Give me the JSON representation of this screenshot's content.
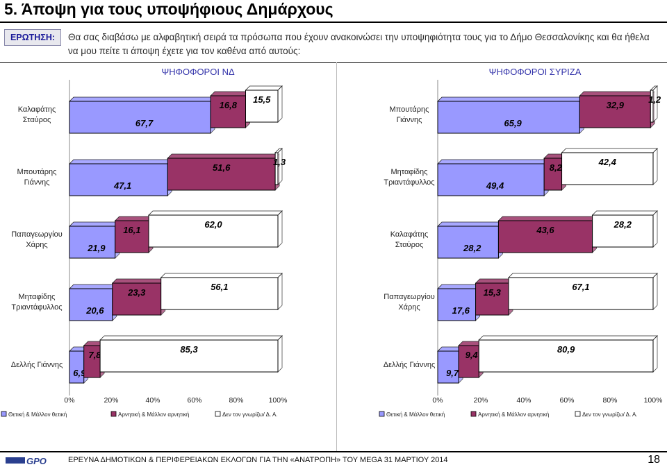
{
  "page": {
    "title": "5.   Άποψη για τους υποψήφιους Δημάρχους",
    "question_label": "ΕΡΩΤΗΣΗ:",
    "question_text": "Θα σας διαβάσω με αλφαβητική σειρά τα πρόσωπα που έχουν ανακοινώσει την υποψηφιότητα τους για το Δήμο Θεσσαλονίκης και θα ήθελα να μου πείτε τι άποψη έχετε για τον καθένα από αυτούς:",
    "footer_text": "ΕΡΕΥΝΑ ΔΗΜΟΤΙΚΩΝ & ΠΕΡΙΦΕΡΕΙΑΚΩΝ ΕΚΛΟΓΩΝ ΓΙΑ ΤΗΝ «ΑΝΑΤΡΟΠΗ» ΤΟΥ MEGA  31 ΜΑΡΤΙΟΥ 2014",
    "page_number": "18",
    "logo_text": "GPO"
  },
  "chart_data": [
    {
      "type": "bar",
      "stacked": "100%",
      "orientation": "horizontal",
      "title": "ΨΗΦΟΦΟΡΟΙ ΝΔ",
      "categories": [
        "Καλαφάτης Σταύρος",
        "Μπουτάρης Γιάννης",
        "Παπαγεωργίου Χάρης",
        "Μηταφίδης Τριαντάφυλλος",
        "Δελλής Γιάννης"
      ],
      "series": [
        {
          "name": "Θετική & Μάλλον θετική",
          "values": [
            67.7,
            47.1,
            21.9,
            20.6,
            6.9
          ],
          "labels": [
            "67,7",
            "47,1",
            "21,9",
            "20,6",
            "6,9"
          ],
          "color": "#9999ff"
        },
        {
          "name": "Αρνητική & Μάλλον αρνητική",
          "values": [
            16.8,
            51.6,
            16.1,
            23.3,
            7.8
          ],
          "labels": [
            "16,8",
            "51,6",
            "16,1",
            "23,3",
            "7,8"
          ],
          "color": "#993366"
        },
        {
          "name": "Δεν τον γνωρίζω/ Δ. Α.",
          "values": [
            15.5,
            1.3,
            62.0,
            56.1,
            85.3
          ],
          "labels": [
            "15,5",
            "1,3",
            "62,0",
            "56,1",
            "85,3"
          ],
          "color": "#ffffff"
        }
      ],
      "xticks": [
        "0%",
        "20%",
        "40%",
        "60%",
        "80%",
        "100%"
      ],
      "xlim": [
        0,
        100
      ],
      "legend": "bottom"
    },
    {
      "type": "bar",
      "stacked": "100%",
      "orientation": "horizontal",
      "title": "ΨΗΦΟΦΟΡΟΙ ΣΥΡΙΖΑ",
      "categories": [
        "Μπουτάρης Γιάννης",
        "Μηταφίδης Τριαντάφυλλος",
        "Καλαφάτης Σταύρος",
        "Παπαγεωργίου Χάρης",
        "Δελλής Γιάννης"
      ],
      "series": [
        {
          "name": "Θετική & Μάλλον θετική",
          "values": [
            65.9,
            49.4,
            28.2,
            17.6,
            9.7
          ],
          "labels": [
            "65,9",
            "49,4",
            "28,2",
            "17,6",
            "9,7"
          ],
          "color": "#9999ff"
        },
        {
          "name": "Αρνητική & Μάλλον αρνητική",
          "values": [
            32.9,
            8.2,
            43.6,
            15.3,
            9.4
          ],
          "labels": [
            "32,9",
            "8,2",
            "43,6",
            "15,3",
            "9,4"
          ],
          "color": "#993366"
        },
        {
          "name": "Δεν τον γνωρίζω/ Δ. Α.",
          "values": [
            1.2,
            42.4,
            28.2,
            67.1,
            80.9
          ],
          "labels": [
            "1,2",
            "42,4",
            "28,2",
            "67,1",
            "80,9"
          ],
          "color": "#ffffff"
        }
      ],
      "xticks": [
        "0%",
        "20%",
        "40%",
        "60%",
        "80%",
        "100%"
      ],
      "xlim": [
        0,
        100
      ],
      "legend": "bottom"
    }
  ]
}
